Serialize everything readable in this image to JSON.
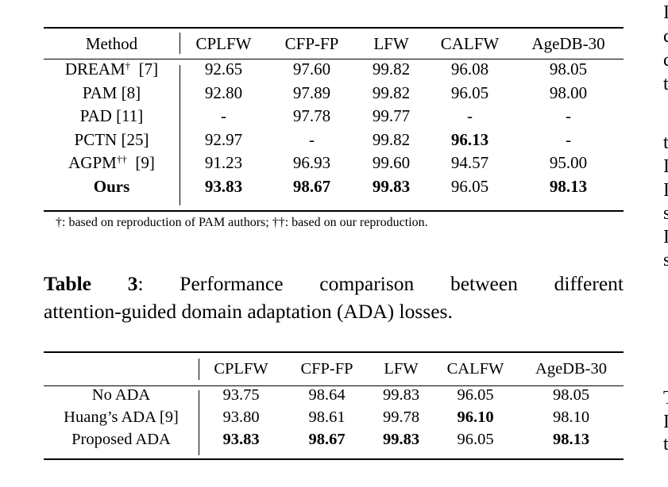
{
  "table2": {
    "header": [
      "Method",
      "CPLFW",
      "CFP-FP",
      "LFW",
      "CALFW",
      "AgeDB-30"
    ],
    "rows": [
      {
        "method": "DREAM",
        "sup": "†",
        "ref": "[7]",
        "values": [
          "92.65",
          "97.60",
          "99.82",
          "96.08",
          "98.05"
        ],
        "bold": [
          false,
          false,
          false,
          false,
          false
        ]
      },
      {
        "method": "PAM",
        "sup": "",
        "ref": "[8]",
        "values": [
          "92.80",
          "97.89",
          "99.82",
          "96.05",
          "98.00"
        ],
        "bold": [
          false,
          false,
          false,
          false,
          false
        ]
      },
      {
        "method": "PAD",
        "sup": "",
        "ref": "[11]",
        "values": [
          "-",
          "97.78",
          "99.77",
          "-",
          "-"
        ],
        "bold": [
          false,
          false,
          false,
          false,
          false
        ]
      },
      {
        "method": "PCTN",
        "sup": "",
        "ref": "[25]",
        "values": [
          "92.97",
          "-",
          "99.82",
          "96.13",
          "-"
        ],
        "bold": [
          false,
          false,
          false,
          true,
          false
        ]
      },
      {
        "method": "AGPM",
        "sup": "††",
        "ref": "[9]",
        "values": [
          "91.23",
          "96.93",
          "99.60",
          "94.57",
          "95.00"
        ],
        "bold": [
          false,
          false,
          false,
          false,
          false
        ]
      },
      {
        "method": "Ours",
        "sup": "",
        "ref": "",
        "values": [
          "93.83",
          "98.67",
          "99.83",
          "96.05",
          "98.13"
        ],
        "bold": [
          true,
          true,
          true,
          false,
          true
        ],
        "method_bold": true
      }
    ],
    "footnote": "†: based on reproduction of PAM authors; ††: based on our reproduction."
  },
  "table3": {
    "caption_label": "Table 3",
    "caption_line1": ":  Performance comparison between different",
    "caption_line2": "attention-guided domain adaptation (ADA) losses.",
    "header": [
      "",
      "CPLFW",
      "CFP-FP",
      "LFW",
      "CALFW",
      "AgeDB-30"
    ],
    "rows": [
      {
        "method": "No ADA",
        "values": [
          "93.75",
          "98.64",
          "99.83",
          "96.05",
          "98.05"
        ],
        "bold": [
          false,
          false,
          false,
          false,
          false
        ]
      },
      {
        "method": "Huang’s ADA [9]",
        "values": [
          "93.80",
          "98.61",
          "99.78",
          "96.10",
          "98.10"
        ],
        "bold": [
          false,
          false,
          false,
          true,
          false
        ]
      },
      {
        "method": "Proposed ADA",
        "values": [
          "93.83",
          "98.67",
          "99.83",
          "96.05",
          "98.13"
        ],
        "bold": [
          true,
          true,
          true,
          false,
          true
        ]
      }
    ]
  },
  "right_column_fragments": [
    "I",
    "c",
    "c",
    "t",
    "t",
    "I",
    "I",
    "s",
    "I",
    "s",
    "T",
    "I",
    "t"
  ]
}
